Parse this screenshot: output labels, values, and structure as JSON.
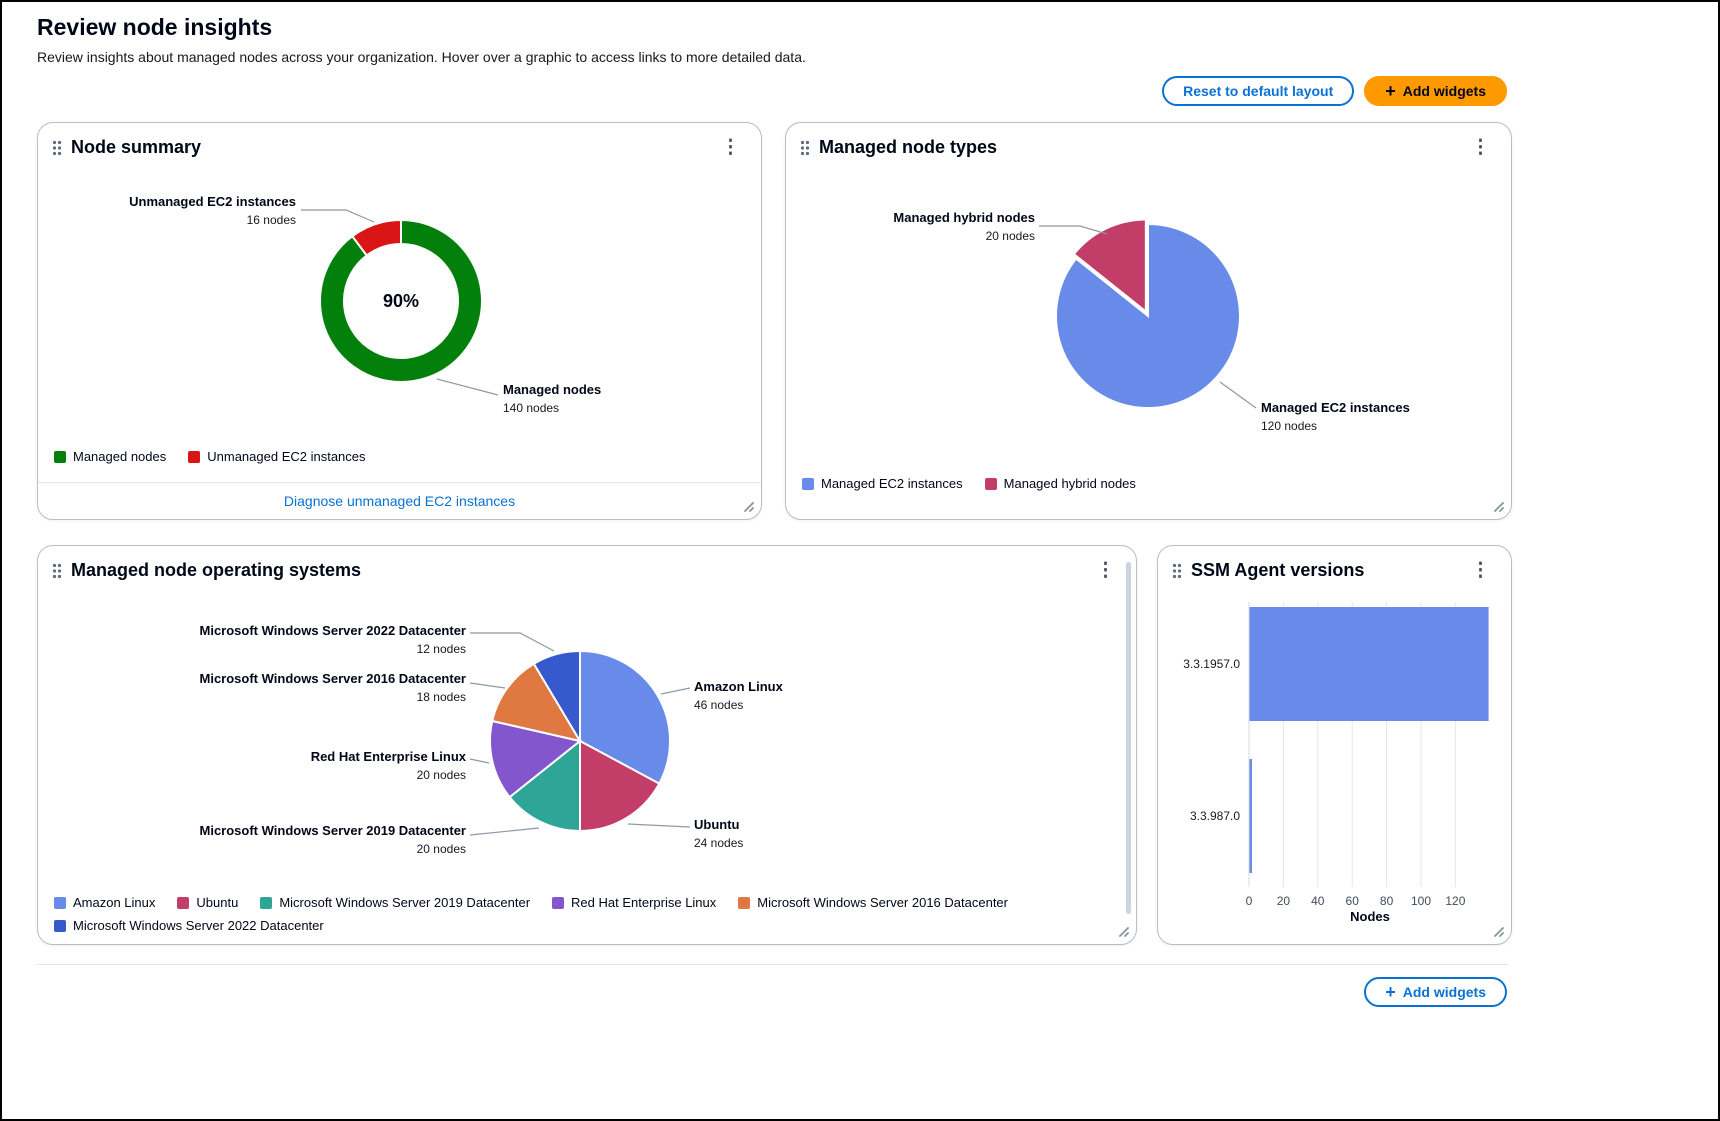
{
  "page": {
    "title": "Review node insights",
    "subtitle": "Review insights about managed nodes across your organization. Hover over a graphic to access links to more detailed data.",
    "actions": {
      "reset_layout": "Reset to default layout",
      "add_widgets": "Add widgets"
    },
    "footer": {
      "add_widgets": "Add widgets"
    }
  },
  "icons": {
    "plus": "+",
    "ellipsis_vertical": "⋮"
  },
  "colors": {
    "accent": "#0972d3",
    "primary_button": "#ff9900"
  },
  "widgets": {
    "node_summary": {
      "footer_link": "Diagnose unmanaged EC2 instances"
    }
  },
  "chart_data": [
    {
      "id": "node-summary",
      "type": "donut",
      "title": "Node summary",
      "center_label": "90%",
      "legend_position": "bottom-left",
      "segments": [
        {
          "label": "Managed nodes",
          "value": 140,
          "sublabel": "140 nodes",
          "color": "#037f0c"
        },
        {
          "label": "Unmanaged EC2 instances",
          "value": 16,
          "sublabel": "16 nodes",
          "color": "#d91515"
        }
      ]
    },
    {
      "id": "managed-node-types",
      "type": "pie",
      "title": "Managed node types",
      "legend_position": "bottom-left",
      "segments": [
        {
          "label": "Managed EC2 instances",
          "value": 120,
          "sublabel": "120 nodes",
          "color": "#688ae8"
        },
        {
          "label": "Managed hybrid nodes",
          "value": 20,
          "sublabel": "20 nodes",
          "color": "#c33d69"
        }
      ]
    },
    {
      "id": "managed-node-operating-systems",
      "type": "pie",
      "title": "Managed node operating systems",
      "legend_position": "bottom-left",
      "segments": [
        {
          "label": "Amazon Linux",
          "value": 46,
          "sublabel": "46 nodes",
          "color": "#688ae8"
        },
        {
          "label": "Ubuntu",
          "value": 24,
          "sublabel": "24 nodes",
          "color": "#c33d69"
        },
        {
          "label": "Microsoft Windows Server 2019 Datacenter",
          "value": 20,
          "sublabel": "20 nodes",
          "color": "#2ea597"
        },
        {
          "label": "Red Hat Enterprise Linux",
          "value": 20,
          "sublabel": "20 nodes",
          "color": "#8456ce"
        },
        {
          "label": "Microsoft Windows Server 2016 Datacenter",
          "value": 18,
          "sublabel": "18 nodes",
          "color": "#e07941"
        },
        {
          "label": "Microsoft Windows Server 2022 Datacenter",
          "value": 12,
          "sublabel": "12 nodes",
          "color": "#3759ce"
        }
      ]
    },
    {
      "id": "ssm-agent-versions",
      "type": "bar",
      "title": "SSM Agent versions",
      "orientation": "horizontal",
      "categories": [
        "3.3.1957.0",
        "3.3.987.0"
      ],
      "values": [
        139,
        1
      ],
      "bar_color": "#688ae8",
      "xlabel": "Nodes",
      "xticks": [
        0,
        20,
        40,
        60,
        80,
        100,
        120
      ],
      "xlim": [
        0,
        145
      ],
      "grid": true
    }
  ]
}
